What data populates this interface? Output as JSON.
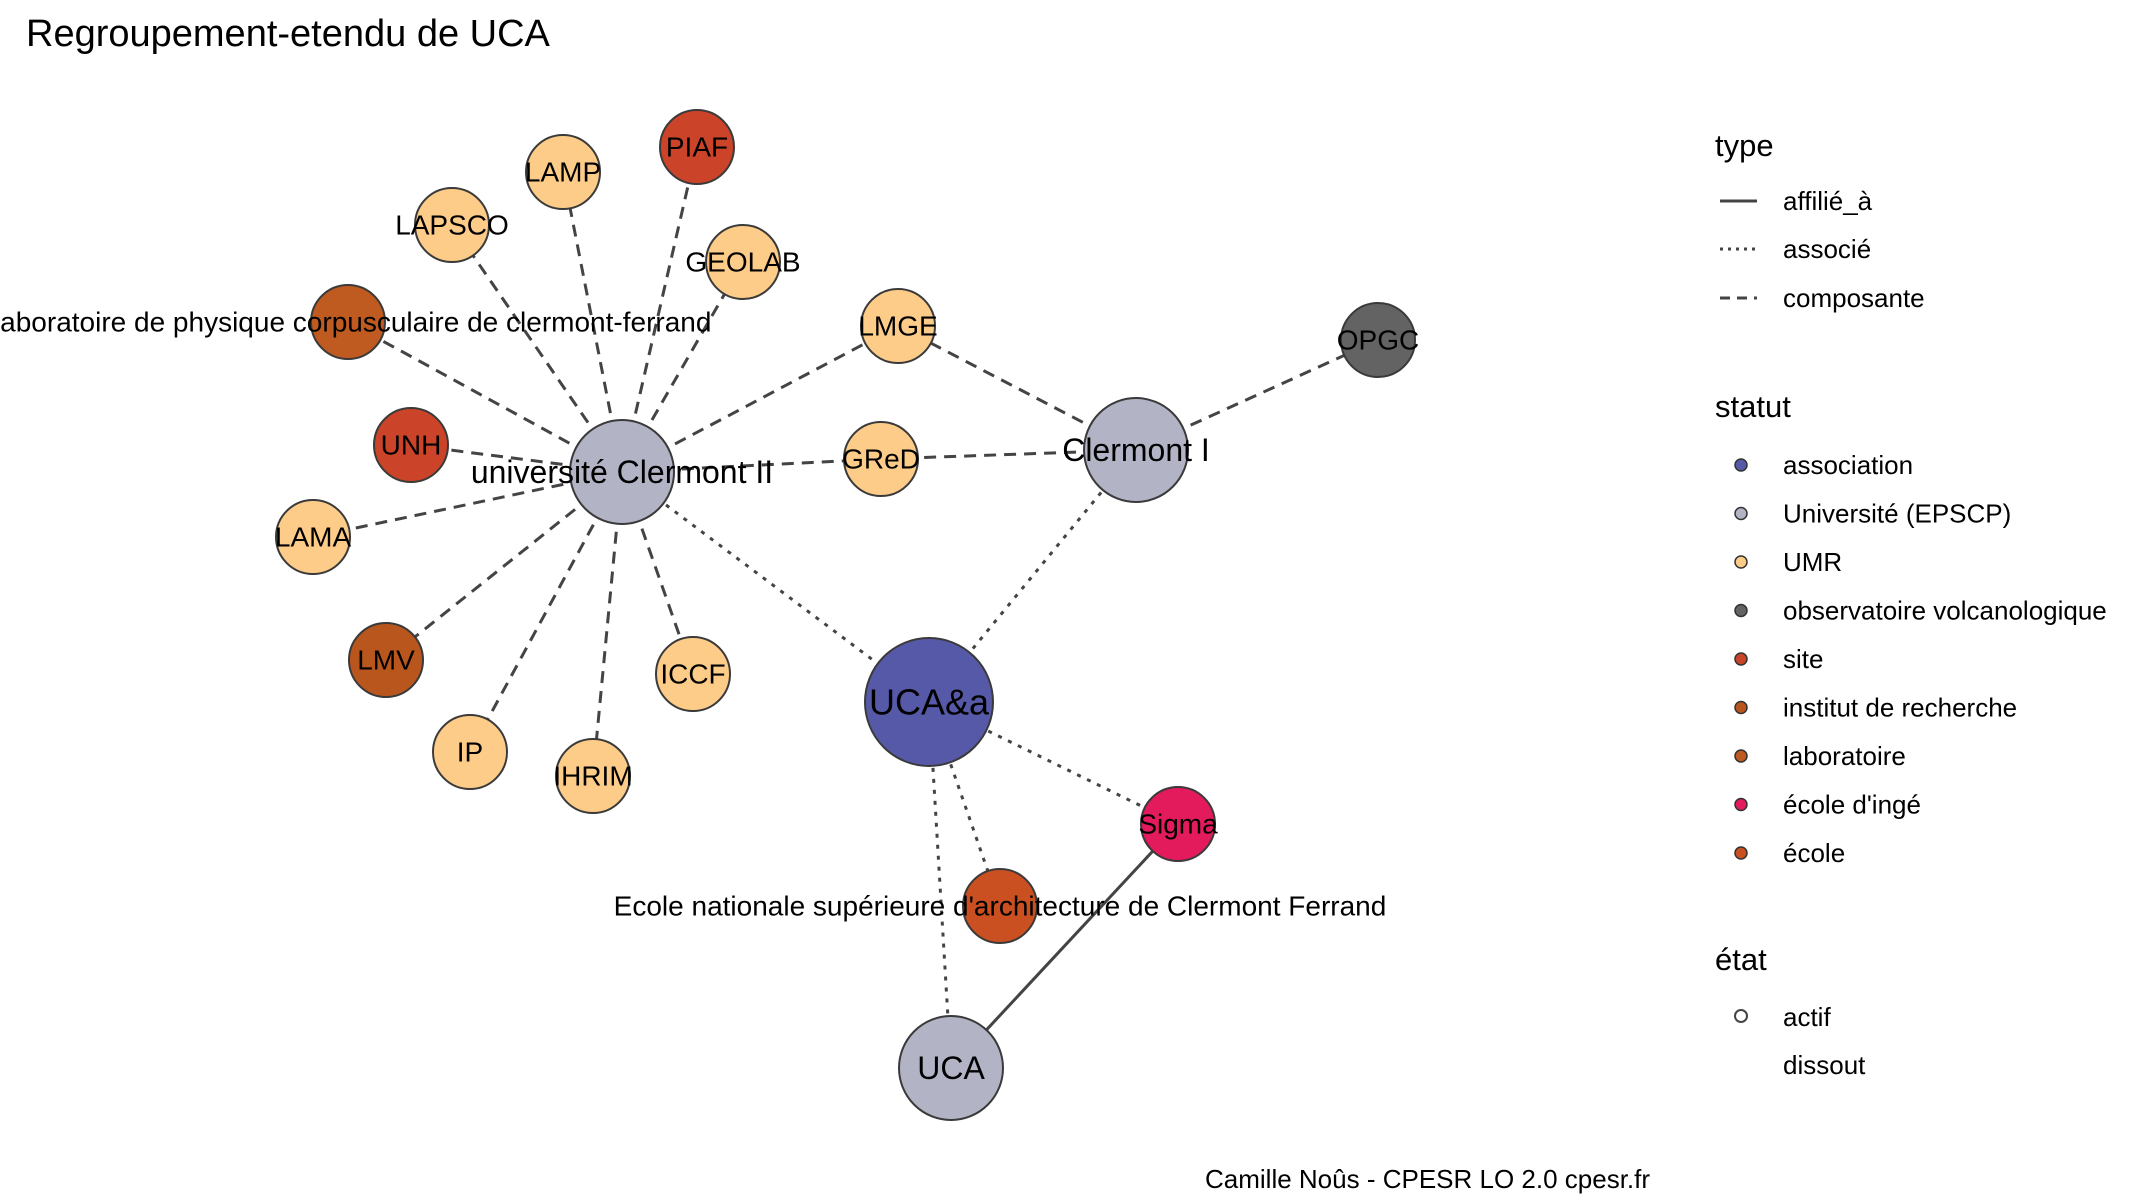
{
  "title": "Regroupement-etendu de UCA",
  "caption": "Camille Noûs - CPESR LO 2.0 cpesr.fr",
  "legend": {
    "type": {
      "title": "type",
      "items": [
        {
          "label": "affilié_à",
          "dash": "solid"
        },
        {
          "label": "associé",
          "dash": "dotted"
        },
        {
          "label": "composante",
          "dash": "dashed"
        }
      ]
    },
    "statut": {
      "title": "statut",
      "items": [
        {
          "label": "association",
          "color": "#5659a7"
        },
        {
          "label": "Université (EPSCP)",
          "color": "#b2b4c6"
        },
        {
          "label": "UMR",
          "color": "#fdcc88"
        },
        {
          "label": "observatoire volcanologique",
          "color": "#636363"
        },
        {
          "label": "site",
          "color": "#cb4329"
        },
        {
          "label": "institut de recherche",
          "color": "#b9561d"
        },
        {
          "label": "laboratoire",
          "color": "#bf5a20"
        },
        {
          "label": "école d'ingé",
          "color": "#e31a5c"
        },
        {
          "label": "école",
          "color": "#ca4f21"
        }
      ]
    },
    "etat": {
      "title": "état",
      "items": [
        {
          "label": "actif",
          "shape": "open-circle"
        },
        {
          "label": "dissout",
          "shape": "none"
        }
      ]
    }
  },
  "nodes": [
    {
      "id": "uca_a",
      "label": "UCA&a",
      "statut": "association",
      "color": "#5659a7",
      "size": "large",
      "label_pos": "center"
    },
    {
      "id": "clermont2",
      "label": "université Clermont II",
      "statut": "Université (EPSCP)",
      "color": "#b2b4c6",
      "size": "medium",
      "label_pos": "center"
    },
    {
      "id": "clermont1",
      "label": "Clermont I",
      "statut": "Université (EPSCP)",
      "color": "#b2b4c6",
      "size": "medium",
      "label_pos": "center"
    },
    {
      "id": "uca",
      "label": "UCA",
      "statut": "Université (EPSCP)",
      "color": "#b2b4c6",
      "size": "medium",
      "label_pos": "center"
    },
    {
      "id": "sigma",
      "label": "Sigma",
      "statut": "école d'ingé",
      "color": "#e31a5c",
      "size": "small",
      "label_pos": "center"
    },
    {
      "id": "opgc",
      "label": "OPGC",
      "statut": "observatoire volcanologique",
      "color": "#636363",
      "size": "small",
      "label_pos": "center"
    },
    {
      "id": "ensa",
      "label": "Ecole nationale supérieure d'architecture de Clermont Ferrand",
      "statut": "école",
      "color": "#ca4f21",
      "size": "small",
      "label_pos": "center"
    },
    {
      "id": "lpc",
      "label": "Laboratoire de physique corpusculaire de clermont-ferrand",
      "statut": "laboratoire",
      "color": "#bf5a20",
      "size": "small",
      "label_pos": "center"
    },
    {
      "id": "piaf",
      "label": "PIAF",
      "statut": "site",
      "color": "#cb4329",
      "size": "small",
      "label_pos": "center"
    },
    {
      "id": "unh",
      "label": "UNH",
      "statut": "site",
      "color": "#cb4329",
      "size": "small",
      "label_pos": "center"
    },
    {
      "id": "lmv",
      "label": "LMV",
      "statut": "institut de recherche",
      "color": "#b9561d",
      "size": "small",
      "label_pos": "center"
    },
    {
      "id": "lamp",
      "label": "LAMP",
      "statut": "UMR",
      "color": "#fdcc88",
      "size": "small",
      "label_pos": "center"
    },
    {
      "id": "lapsco",
      "label": "LAPSCO",
      "statut": "UMR",
      "color": "#fdcc88",
      "size": "small",
      "label_pos": "center"
    },
    {
      "id": "geolab",
      "label": "GEOLAB",
      "statut": "UMR",
      "color": "#fdcc88",
      "size": "small",
      "label_pos": "center"
    },
    {
      "id": "lmge",
      "label": "LMGE",
      "statut": "UMR",
      "color": "#fdcc88",
      "size": "small",
      "label_pos": "center"
    },
    {
      "id": "gred",
      "label": "GReD",
      "statut": "UMR",
      "color": "#fdcc88",
      "size": "small",
      "label_pos": "center"
    },
    {
      "id": "lama",
      "label": "LAMA",
      "statut": "UMR",
      "color": "#fdcc88",
      "size": "small",
      "label_pos": "center"
    },
    {
      "id": "iccf",
      "label": "ICCF",
      "statut": "UMR",
      "color": "#fdcc88",
      "size": "small",
      "label_pos": "center"
    },
    {
      "id": "ip",
      "label": "IP",
      "statut": "UMR",
      "color": "#fdcc88",
      "size": "small",
      "label_pos": "center"
    },
    {
      "id": "ihrim",
      "label": "IHRIM",
      "statut": "UMR",
      "color": "#fdcc88",
      "size": "small",
      "label_pos": "center"
    }
  ],
  "edges": [
    {
      "from": "clermont2",
      "to": "lapsco",
      "type": "composante"
    },
    {
      "from": "clermont2",
      "to": "lamp",
      "type": "composante"
    },
    {
      "from": "clermont2",
      "to": "piaf",
      "type": "composante"
    },
    {
      "from": "clermont2",
      "to": "geolab",
      "type": "composante"
    },
    {
      "from": "clermont2",
      "to": "lpc",
      "type": "composante"
    },
    {
      "from": "clermont2",
      "to": "lmge",
      "type": "composante"
    },
    {
      "from": "clermont2",
      "to": "unh",
      "type": "composante"
    },
    {
      "from": "clermont2",
      "to": "gred",
      "type": "composante"
    },
    {
      "from": "clermont2",
      "to": "lama",
      "type": "composante"
    },
    {
      "from": "clermont2",
      "to": "lmv",
      "type": "composante"
    },
    {
      "from": "clermont2",
      "to": "ip",
      "type": "composante"
    },
    {
      "from": "clermont2",
      "to": "ihrim",
      "type": "composante"
    },
    {
      "from": "clermont2",
      "to": "iccf",
      "type": "composante"
    },
    {
      "from": "clermont1",
      "to": "lmge",
      "type": "composante"
    },
    {
      "from": "clermont1",
      "to": "gred",
      "type": "composante"
    },
    {
      "from": "clermont1",
      "to": "opgc",
      "type": "composante"
    },
    {
      "from": "clermont2",
      "to": "uca_a",
      "type": "associé"
    },
    {
      "from": "clermont1",
      "to": "uca_a",
      "type": "associé"
    },
    {
      "from": "uca_a",
      "to": "sigma",
      "type": "associé"
    },
    {
      "from": "uca_a",
      "to": "ensa",
      "type": "associé"
    },
    {
      "from": "uca_a",
      "to": "uca",
      "type": "associé"
    },
    {
      "from": "sigma",
      "to": "uca",
      "type": "affilié_à"
    }
  ]
}
